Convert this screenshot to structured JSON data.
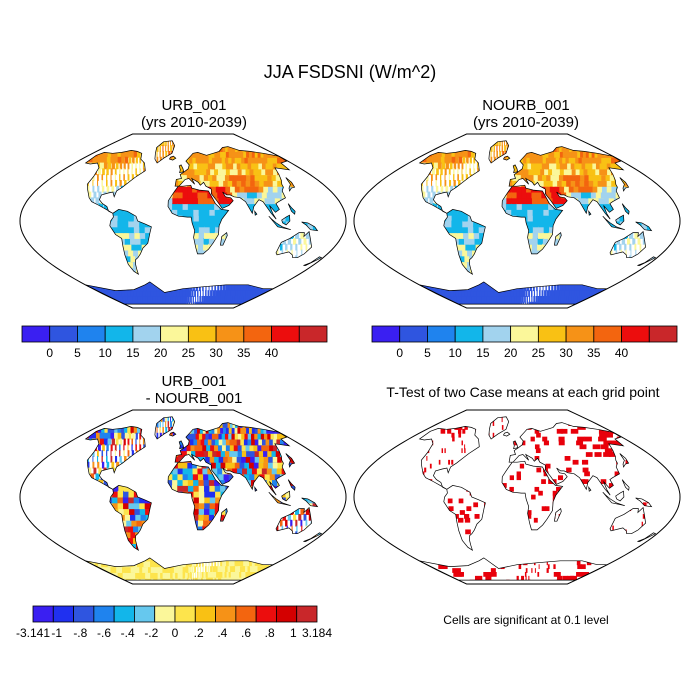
{
  "figure": {
    "title": "JJA FSDSNI (W/m^2)"
  },
  "panels": [
    {
      "title_line1": "URB_001",
      "title_line2": "(yrs 2010-2039)",
      "colorbar": {
        "colors": [
          "#3a1ff2",
          "#2f55e0",
          "#1f83ee",
          "#12b6ea",
          "#a2d3ee",
          "#fbf79a",
          "#f9c114",
          "#f69217",
          "#f3650f",
          "#ec0d0d",
          "#c9272a"
        ],
        "labels": [
          "0",
          "5",
          "10",
          "15",
          "20",
          "25",
          "30",
          "35",
          "40"
        ]
      }
    },
    {
      "title_line1": "NOURB_001",
      "title_line2": "(yrs 2010-2039)",
      "colorbar": {
        "colors": [
          "#3a1ff2",
          "#2f55e0",
          "#1f83ee",
          "#12b6ea",
          "#a2d3ee",
          "#fbf79a",
          "#f9c114",
          "#f69217",
          "#f3650f",
          "#ec0d0d",
          "#c9272a"
        ],
        "labels": [
          "0",
          "5",
          "10",
          "15",
          "20",
          "25",
          "30",
          "35",
          "40"
        ]
      }
    },
    {
      "title_line1": "URB_001",
      "title_line2": "- NOURB_001",
      "colorbar": {
        "colors": [
          "#3a1ff2",
          "#2030f0",
          "#2f55e0",
          "#1f83ee",
          "#12b6ea",
          "#66c8ee",
          "#fbf79a",
          "#fde44c",
          "#f9c114",
          "#f69217",
          "#f3650f",
          "#ec0d0d",
          "#d40000",
          "#c9272a"
        ],
        "labels": [
          "-3.141",
          "-1",
          "-.8",
          "-.6",
          "-.4",
          "-.2",
          "0",
          ".2",
          ".4",
          ".6",
          ".8",
          "1",
          "3.184"
        ]
      }
    },
    {
      "title_line1": "T-Test of two Case means at each grid point",
      "note": "Cells are significant at 0.1 level"
    }
  ]
}
